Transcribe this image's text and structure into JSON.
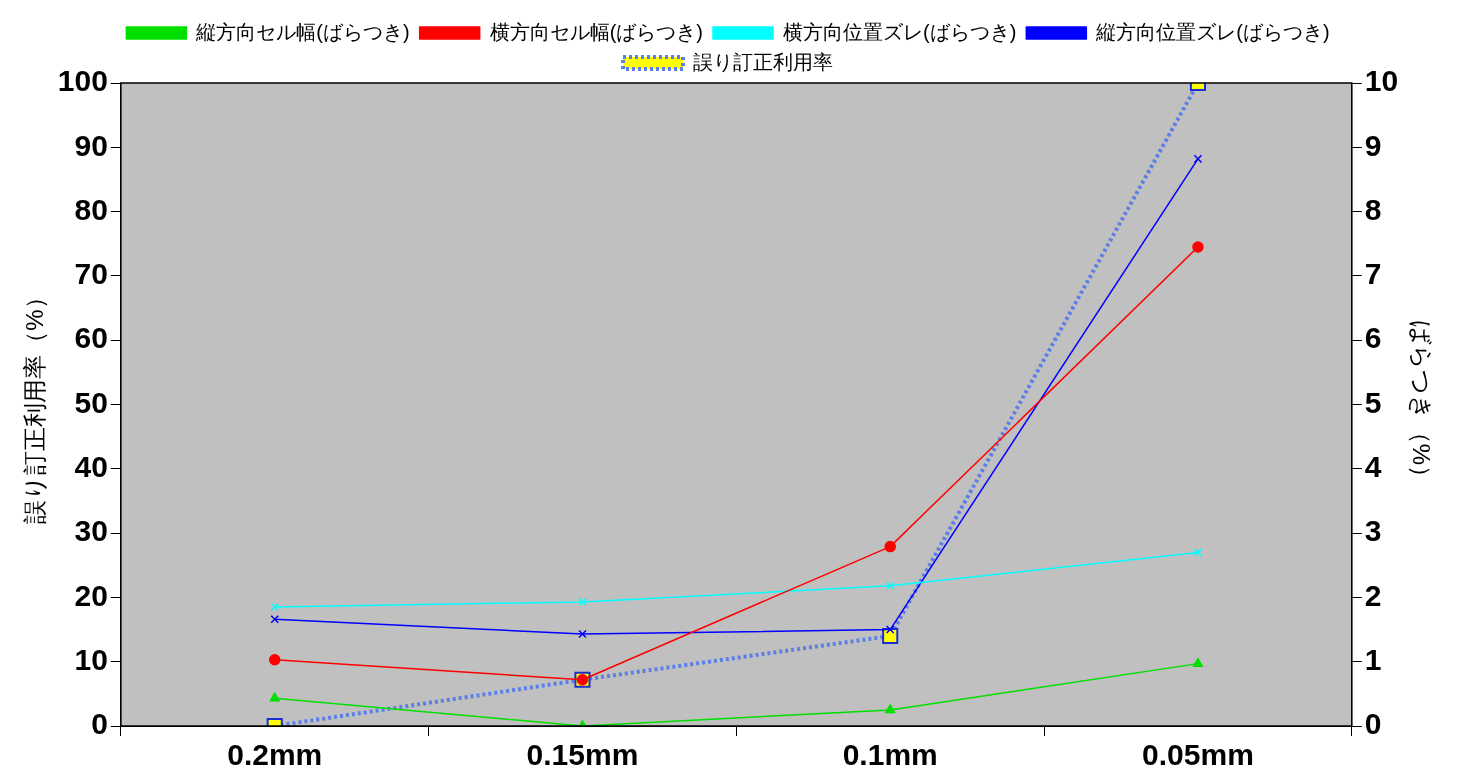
{
  "chart_data": {
    "type": "line",
    "categories": [
      "0.2mm",
      "0.15mm",
      "0.1mm",
      "0.05mm"
    ],
    "ylabel": "誤り訂正利用率（%）",
    "y2label": "ばらつき（%）",
    "ylim": [
      0,
      100
    ],
    "yticks": [
      0,
      10,
      20,
      30,
      40,
      50,
      60,
      70,
      80,
      90,
      100
    ],
    "y2lim": [
      0,
      10
    ],
    "y2ticks": [
      0,
      1,
      2,
      3,
      4,
      5,
      6,
      7,
      8,
      9,
      10
    ],
    "grid": false,
    "legend": "top",
    "series": [
      {
        "name": "誤り訂正利用率",
        "color": "#5b7fe6",
        "marker": "square",
        "line_style": "dotted",
        "values": [
          0,
          7.2,
          14,
          100
        ]
      },
      {
        "name": "縦方向セル幅(ばらつき)",
        "color": "#00e000",
        "marker": "triangle",
        "axis": "y2",
        "values": [
          0.43,
          0,
          0.25,
          0.97
        ]
      },
      {
        "name": "横方向セル幅(ばらつき)",
        "color": "#ff0000",
        "marker": "circle",
        "axis": "y2",
        "values": [
          1.03,
          0.72,
          2.79,
          7.45
        ]
      },
      {
        "name": "横方向位置ズレ(ばらつき)",
        "color": "#00ffff",
        "marker": "cross",
        "axis": "y2",
        "values": [
          1.85,
          1.93,
          2.18,
          2.7
        ]
      },
      {
        "name": "縦方向位置ズレ(ばらつき)",
        "color": "#0000ff",
        "marker": "cross",
        "axis": "y2",
        "values": [
          1.66,
          1.43,
          1.5,
          8.82
        ]
      }
    ]
  }
}
